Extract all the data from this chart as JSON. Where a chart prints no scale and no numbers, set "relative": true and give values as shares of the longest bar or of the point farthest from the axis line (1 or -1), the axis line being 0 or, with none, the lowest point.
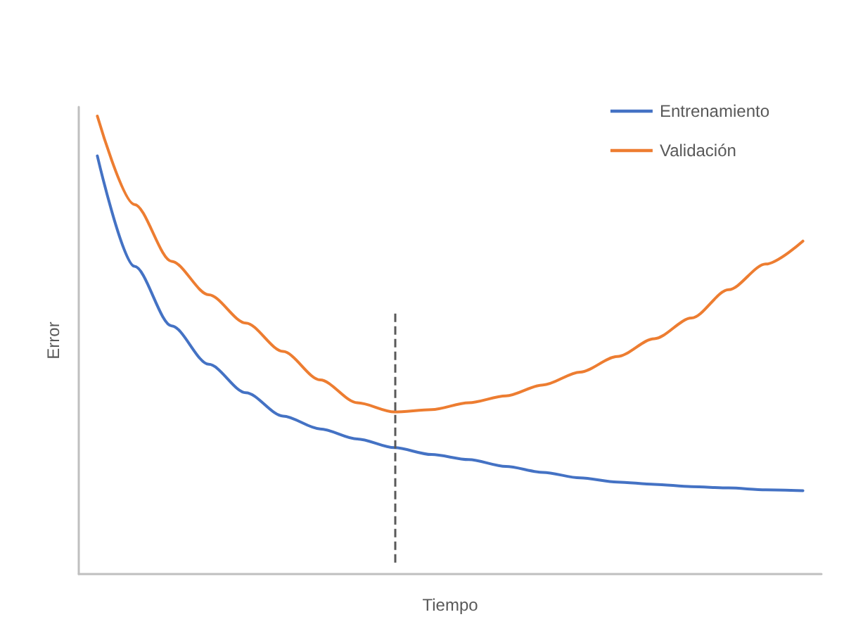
{
  "chart_data": {
    "type": "line",
    "relative": true,
    "xlabel": "Tiempo",
    "ylabel": "Error",
    "categories": [
      null,
      null,
      null,
      null,
      null,
      null,
      null,
      null,
      null,
      null,
      null,
      null,
      null,
      null,
      null,
      null,
      null,
      null,
      null,
      null
    ],
    "series": [
      {
        "name": "Entrenamiento",
        "color": "#4472c4",
        "values": [
          0.913,
          0.672,
          0.542,
          0.458,
          0.396,
          0.345,
          0.317,
          0.295,
          0.276,
          0.261,
          0.25,
          0.235,
          0.222,
          0.21,
          0.201,
          0.196,
          0.191,
          0.188,
          0.184,
          0.182
        ]
      },
      {
        "name": "Validación",
        "color": "#ed7d31",
        "values": [
          1,
          0.807,
          0.683,
          0.61,
          0.548,
          0.486,
          0.424,
          0.374,
          0.354,
          0.359,
          0.374,
          0.389,
          0.413,
          0.441,
          0.475,
          0.514,
          0.559,
          0.621,
          0.677,
          0.727
        ]
      }
    ],
    "legend": "top right",
    "grid": false,
    "marker": "none",
    "line_style": "solid"
  }
}
